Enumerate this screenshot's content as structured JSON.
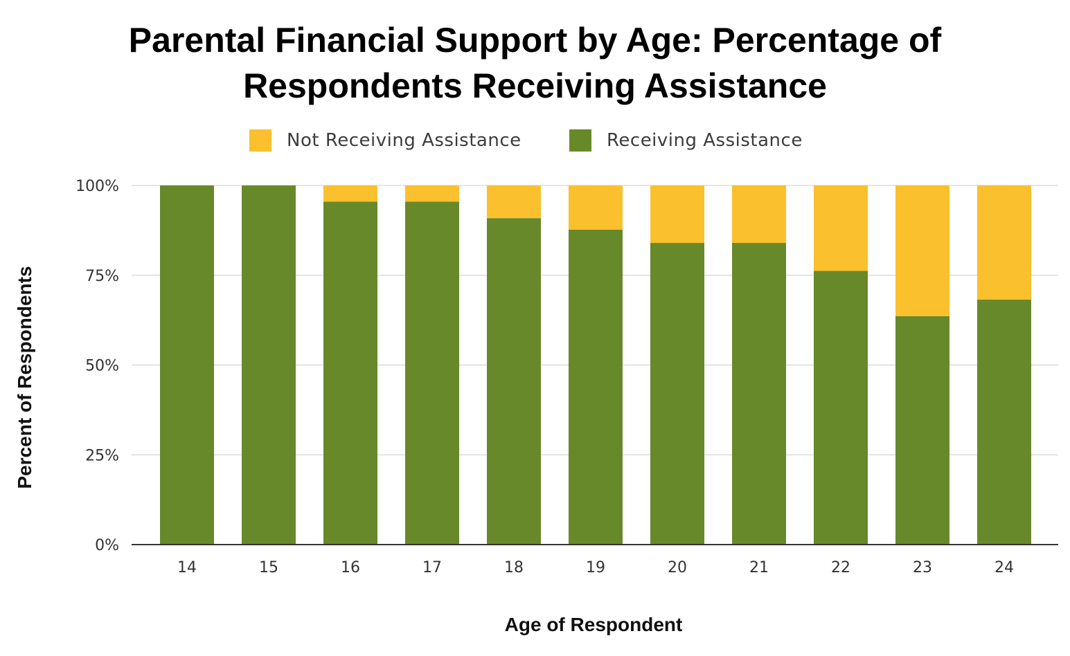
{
  "chart_data": {
    "type": "bar",
    "stacked": true,
    "title_lines": [
      "Parental Financial Support by Age: Percentage of",
      "Respondents Receiving Assistance"
    ],
    "xlabel": "Age of Respondent",
    "ylabel": "Percent of Respondents",
    "categories": [
      "14",
      "15",
      "16",
      "17",
      "18",
      "19",
      "20",
      "21",
      "22",
      "23",
      "24"
    ],
    "series": [
      {
        "name": "Receiving Assistance",
        "color": "#67892a",
        "values": [
          100,
          100,
          95.5,
          95.5,
          90.9,
          87.7,
          84,
          84,
          76.2,
          63.6,
          68.2
        ]
      },
      {
        "name": "Not Receiving Assistance",
        "color": "#fbc02d",
        "values": [
          0,
          0,
          4.5,
          4.5,
          9.1,
          12.3,
          16,
          16,
          23.8,
          36.4,
          31.8
        ]
      }
    ],
    "legend_order": [
      "Not Receiving Assistance",
      "Receiving Assistance"
    ],
    "legend_position": "top",
    "ylim": [
      0,
      100
    ],
    "yticks": [
      0,
      25,
      50,
      75,
      100
    ],
    "ytick_labels": [
      "0%",
      "25%",
      "50%",
      "75%",
      "100%"
    ],
    "grid": true
  }
}
